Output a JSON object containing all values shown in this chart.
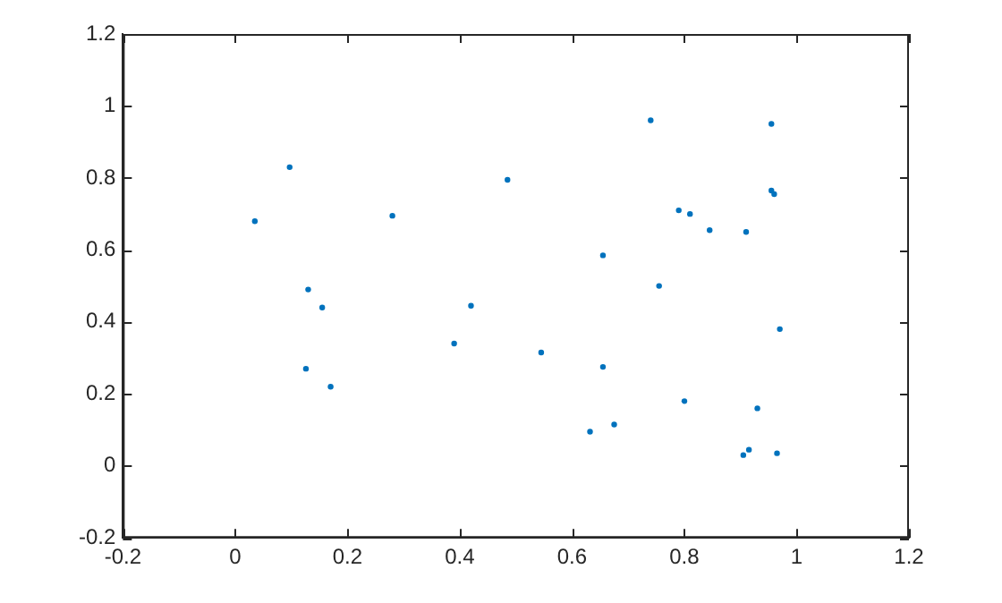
{
  "chart_data": {
    "type": "scatter",
    "marker": "circle",
    "grid": false,
    "legend": false,
    "xlim": [
      -0.2,
      1.2
    ],
    "xticks": [
      -0.2,
      0,
      0.2,
      0.4,
      0.6,
      0.8,
      1,
      1.2
    ],
    "ylim": [
      -0.2,
      1.2
    ],
    "yticks": [
      -0.2,
      0,
      0.2,
      0.4,
      0.6,
      0.8,
      1,
      1.2
    ],
    "series": [
      {
        "color": "#0072bd",
        "x": [
          0.035,
          0.097,
          0.13,
          0.155,
          0.126,
          0.17,
          0.28,
          0.39,
          0.42,
          0.485,
          0.545,
          0.655,
          0.655,
          0.632,
          0.675,
          0.74,
          0.755,
          0.79,
          0.81,
          0.845,
          0.91,
          0.8,
          0.93,
          0.905,
          0.915,
          0.965,
          0.97,
          0.955,
          0.955,
          0.96
        ],
        "values": [
          0.68,
          0.83,
          0.49,
          0.44,
          0.27,
          0.22,
          0.695,
          0.34,
          0.445,
          0.795,
          0.315,
          0.585,
          0.275,
          0.095,
          0.115,
          0.96,
          0.5,
          0.71,
          0.7,
          0.655,
          0.65,
          0.18,
          0.16,
          0.03,
          0.045,
          0.035,
          0.38,
          0.95,
          0.765,
          0.755
        ]
      }
    ]
  }
}
